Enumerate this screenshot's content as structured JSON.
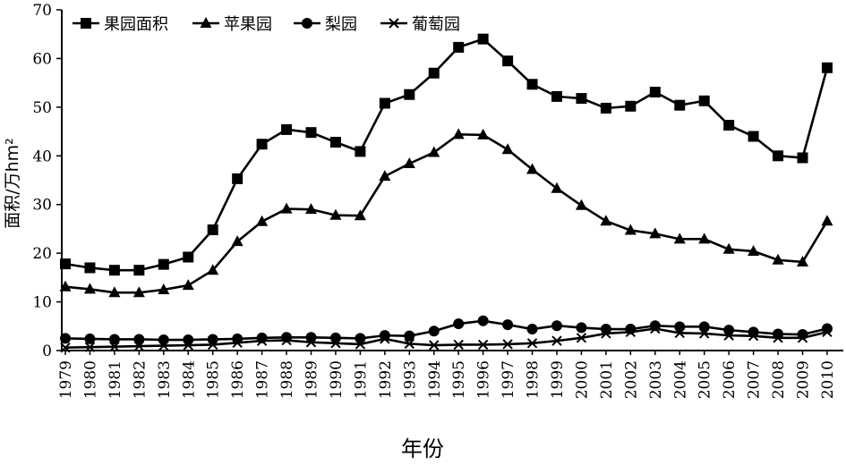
{
  "chart_data": {
    "type": "line",
    "title": "",
    "xlabel": "年份",
    "ylabel": "面积/万hm²",
    "ylim": [
      0,
      70
    ],
    "yticks": [
      0,
      10,
      20,
      30,
      40,
      50,
      60,
      70
    ],
    "grid": false,
    "legend_position": "top-left",
    "x": [
      "1979",
      "1980",
      "1981",
      "1982",
      "1983",
      "1984",
      "1985",
      "1986",
      "1987",
      "1988",
      "1989",
      "1990",
      "1991",
      "1992",
      "1993",
      "1994",
      "1995",
      "1996",
      "1997",
      "1998",
      "1999",
      "2000",
      "2001",
      "2002",
      "2003",
      "2004",
      "2005",
      "2006",
      "2007",
      "2008",
      "2009",
      "2010"
    ],
    "series": [
      {
        "name": "果园面积",
        "marker": "square",
        "values": [
          17.8,
          17.0,
          16.5,
          16.5,
          17.7,
          19.2,
          24.8,
          35.3,
          42.4,
          45.4,
          44.8,
          42.8,
          40.9,
          50.8,
          52.6,
          57.0,
          62.3,
          64.0,
          59.5,
          54.7,
          52.2,
          51.8,
          49.8,
          50.2,
          53.1,
          50.4,
          51.3,
          46.3,
          44.0,
          40.0,
          39.6,
          58.1
        ]
      },
      {
        "name": "苹果园",
        "marker": "triangle",
        "values": [
          13.1,
          12.6,
          11.9,
          11.9,
          12.5,
          13.4,
          16.5,
          22.4,
          26.5,
          29.1,
          29.0,
          27.8,
          27.7,
          35.8,
          38.4,
          40.7,
          44.4,
          44.3,
          41.3,
          37.2,
          33.3,
          29.8,
          26.6,
          24.7,
          24.0,
          22.9,
          22.9,
          20.8,
          20.4,
          18.6,
          18.2,
          26.6
        ]
      },
      {
        "name": "梨园",
        "marker": "circle",
        "values": [
          2.5,
          2.4,
          2.3,
          2.3,
          2.2,
          2.2,
          2.3,
          2.4,
          2.6,
          2.7,
          2.7,
          2.6,
          2.5,
          3.1,
          3.0,
          4.0,
          5.5,
          6.1,
          5.3,
          4.4,
          5.1,
          4.7,
          4.4,
          4.4,
          5.1,
          4.9,
          4.9,
          4.2,
          3.8,
          3.4,
          3.3,
          4.5
        ]
      },
      {
        "name": "葡萄园",
        "marker": "x",
        "values": [
          0.6,
          0.7,
          0.8,
          0.9,
          1.0,
          1.1,
          1.2,
          1.6,
          2.0,
          2.1,
          1.7,
          1.5,
          1.3,
          2.4,
          1.4,
          1.1,
          1.2,
          1.2,
          1.3,
          1.5,
          2.0,
          2.6,
          3.5,
          3.8,
          4.5,
          3.6,
          3.5,
          3.1,
          3.0,
          2.6,
          2.6,
          3.8
        ]
      }
    ]
  }
}
